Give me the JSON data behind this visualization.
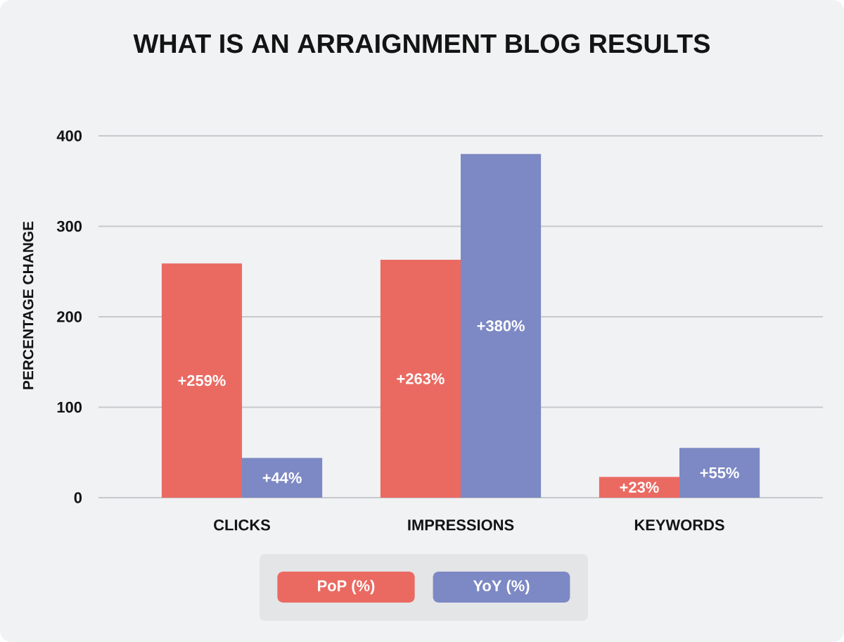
{
  "chart_data": {
    "type": "bar",
    "title": "WHAT IS AN ARRAIGNMENT BLOG RESULTS",
    "ylabel": "PERCENTAGE CHANGE",
    "categories": [
      "CLICKS",
      "IMPRESSIONS",
      "KEYWORDS"
    ],
    "series": [
      {
        "name": "PoP (%)",
        "color": "#ea6a62",
        "values": [
          259,
          263,
          23
        ],
        "value_labels": [
          "+259%",
          "+263%",
          "+23%"
        ]
      },
      {
        "name": "YoY (%)",
        "color": "#7d89c4",
        "values": [
          44,
          380,
          55
        ],
        "value_labels": [
          "+44%",
          "+380%",
          "+55%"
        ]
      }
    ],
    "ylim": [
      0,
      400
    ],
    "yticks": [
      0,
      100,
      200,
      300,
      400
    ],
    "grid": "y",
    "legend": "bottom"
  }
}
